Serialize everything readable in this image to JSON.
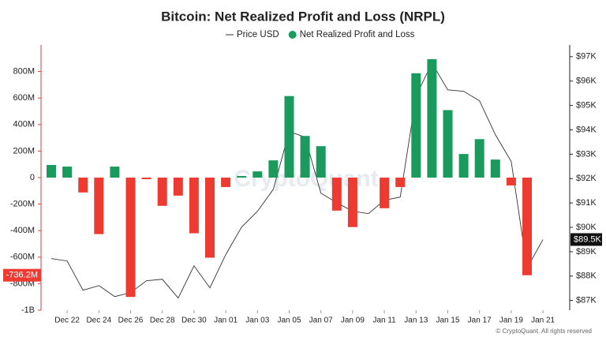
{
  "chart_data": {
    "type": "combo",
    "title": "Bitcoin: Net Realized Profit and Loss (NRPL)",
    "watermark": "CryptoQuant",
    "footer": "© CryptoQuant. All rights reserved",
    "categories": [
      null,
      "Dec 22",
      null,
      "Dec 24",
      null,
      "Dec 26",
      null,
      "Dec 28",
      null,
      "Dec 30",
      null,
      "Jan 01",
      null,
      "Jan 03",
      null,
      "Jan 05",
      null,
      "Jan 07",
      null,
      "Jan 09",
      null,
      "Jan 11",
      null,
      "Jan 13",
      null,
      "Jan 15",
      null,
      "Jan 17",
      null,
      "Jan 19",
      null,
      "Jan 21"
    ],
    "ylim": [
      -1000000000,
      1000000000
    ],
    "yticks": [
      {
        "value": -1000000000,
        "label": "-1B"
      },
      {
        "value": -800000000,
        "label": "-800M"
      },
      {
        "value": -600000000,
        "label": "-600M"
      },
      {
        "value": -400000000,
        "label": "-400M"
      },
      {
        "value": -200000000,
        "label": "-200M"
      },
      0,
      {
        "value": 200000000,
        "label": "200M"
      },
      {
        "value": 400000000,
        "label": "400M"
      },
      {
        "value": 600000000,
        "label": "600M"
      },
      {
        "value": 800000000,
        "label": "800M"
      }
    ],
    "y2lim": [
      86600,
      97480
    ],
    "y2ticks": [
      {
        "value": 87000,
        "label": "$87K"
      },
      {
        "value": 88000,
        "label": "$88K"
      },
      {
        "value": 89000,
        "label": "$89K"
      },
      {
        "value": 90000,
        "label": "$90K"
      },
      {
        "value": 91000,
        "label": "$91K"
      },
      {
        "value": 92000,
        "label": "$92K"
      },
      {
        "value": 93000,
        "label": "$93K"
      },
      {
        "value": 94000,
        "label": "$94K"
      },
      {
        "value": 95000,
        "label": "$95K"
      },
      {
        "value": 96000,
        "label": "$96K"
      },
      {
        "value": 97000,
        "label": "$97K"
      }
    ],
    "series": [
      {
        "name": "Price USD",
        "type": "line",
        "axis": "y2",
        "color": "#333333",
        "values": [
          88720,
          88620,
          87420,
          87610,
          87160,
          87320,
          87810,
          87870,
          87100,
          88420,
          87520,
          88880,
          90010,
          90660,
          91560,
          93930,
          93700,
          91400,
          91010,
          90660,
          90560,
          91110,
          91240,
          95380,
          96740,
          95640,
          95580,
          95190,
          93800,
          92700,
          88330,
          89500
        ],
        "last_label": "$89.5K"
      },
      {
        "name": "Net Realized Profit and Loss",
        "type": "bar",
        "color": "#1a9a5c",
        "negative_color": "#ee3b31",
        "values": [
          95000000,
          83000000,
          -112000000,
          -426000000,
          83000000,
          -900000000,
          -12000000,
          -213000000,
          -136000000,
          -420000000,
          -604000000,
          -71000000,
          12000000,
          47000000,
          130000000,
          615000000,
          314000000,
          237000000,
          -249000000,
          -373000000,
          0,
          -231000000,
          -71000000,
          787000000,
          893000000,
          509000000,
          178000000,
          290000000,
          136000000,
          -59000000,
          -736200000,
          null
        ],
        "last_label": "-736.2M"
      }
    ]
  }
}
